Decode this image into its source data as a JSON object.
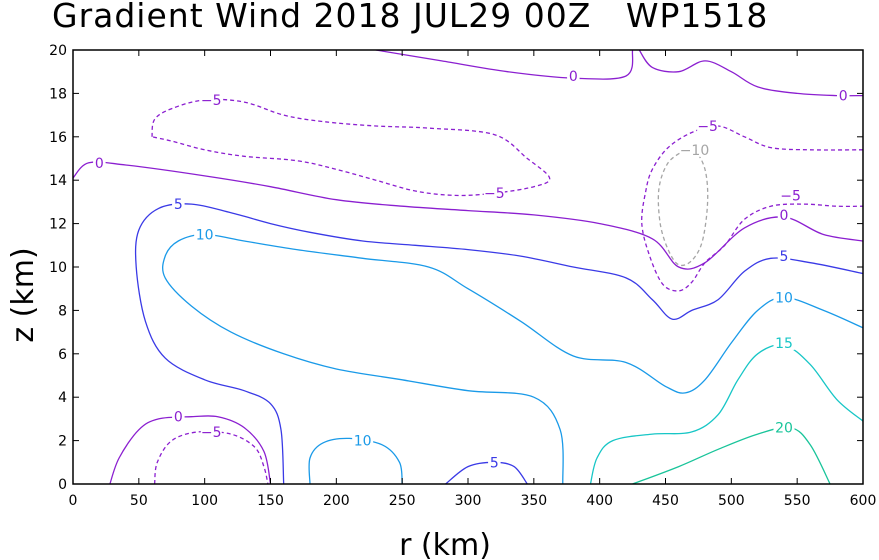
{
  "chart_data": {
    "type": "contour",
    "title": "Gradient Wind 2018 JUL29 00Z   WP1518",
    "xlabel": "r (km)",
    "ylabel": "z (km)",
    "xlim": [
      0,
      600
    ],
    "ylim": [
      0,
      20
    ],
    "xticks": [
      0,
      50,
      100,
      150,
      200,
      250,
      300,
      350,
      400,
      450,
      500,
      550,
      600
    ],
    "yticks": [
      0,
      2,
      4,
      6,
      8,
      10,
      12,
      14,
      16,
      18,
      20
    ],
    "contours": [
      {
        "level": "0",
        "color": "#8b1fd0",
        "dashed": false,
        "points": [
          [
            0,
            14.1
          ],
          [
            12,
            14.8
          ],
          [
            40,
            14.7
          ],
          [
            100,
            14.2
          ],
          [
            150,
            13.7
          ],
          [
            200,
            13.1
          ],
          [
            250,
            12.8
          ],
          [
            300,
            12.6
          ],
          [
            350,
            12.4
          ],
          [
            400,
            12.0
          ],
          [
            440,
            11.3
          ],
          [
            460,
            10.0
          ],
          [
            480,
            10.2
          ],
          [
            510,
            11.8
          ],
          [
            540,
            12.3
          ],
          [
            570,
            11.5
          ],
          [
            600,
            11.2
          ]
        ],
        "labels": [
          {
            "text": "0",
            "x": 20,
            "y": 14.8
          },
          {
            "text": "0",
            "x": 540,
            "y": 12.4
          }
        ]
      },
      {
        "level": "0",
        "color": "#8b1fd0",
        "dashed": false,
        "points": [
          [
            230,
            20
          ],
          [
            280,
            19.5
          ],
          [
            330,
            19.0
          ],
          [
            380,
            18.7
          ],
          [
            420,
            18.8
          ],
          [
            425,
            20
          ]
        ],
        "labels": [
          {
            "text": "0",
            "x": 380,
            "y": 18.8
          }
        ]
      },
      {
        "level": "0",
        "color": "#8b1fd0",
        "dashed": false,
        "points": [
          [
            430,
            20
          ],
          [
            440,
            19.2
          ],
          [
            460,
            19.0
          ],
          [
            480,
            19.5
          ],
          [
            500,
            19.0
          ],
          [
            520,
            18.3
          ],
          [
            550,
            18.0
          ],
          [
            580,
            17.9
          ],
          [
            600,
            17.9
          ]
        ],
        "labels": [
          {
            "text": "0",
            "x": 585,
            "y": 17.9
          }
        ]
      },
      {
        "level": "0",
        "color": "#8b1fd0",
        "dashed": false,
        "points": [
          [
            28,
            0
          ],
          [
            35,
            1.2
          ],
          [
            50,
            2.5
          ],
          [
            65,
            3.0
          ],
          [
            90,
            3.1
          ],
          [
            110,
            3.1
          ],
          [
            130,
            2.6
          ],
          [
            145,
            1.5
          ],
          [
            150,
            0
          ]
        ],
        "labels": [
          {
            "text": "0",
            "x": 80,
            "y": 3.1
          }
        ]
      },
      {
        "level": "-5",
        "color": "#8b1fd0",
        "dashed": true,
        "points": [
          [
            62,
            0
          ],
          [
            64,
            1.0
          ],
          [
            75,
            2.0
          ],
          [
            95,
            2.4
          ],
          [
            120,
            2.3
          ],
          [
            138,
            1.7
          ],
          [
            145,
            0.8
          ],
          [
            148,
            0
          ]
        ],
        "labels": [
          {
            "text": "-5",
            "x": 105,
            "y": 2.4
          }
        ]
      },
      {
        "level": "-5",
        "color": "#8b1fd0",
        "dashed": true,
        "points": [
          [
            60,
            16.0
          ],
          [
            62,
            16.8
          ],
          [
            75,
            17.3
          ],
          [
            100,
            17.7
          ],
          [
            130,
            17.6
          ],
          [
            160,
            17.0
          ],
          [
            190,
            16.7
          ],
          [
            230,
            16.5
          ],
          [
            270,
            16.4
          ],
          [
            320,
            16.1
          ],
          [
            345,
            15.0
          ],
          [
            362,
            14.1
          ],
          [
            350,
            13.7
          ],
          [
            320,
            13.4
          ],
          [
            290,
            13.3
          ],
          [
            260,
            13.5
          ],
          [
            230,
            14.0
          ],
          [
            200,
            14.5
          ],
          [
            170,
            14.9
          ],
          [
            130,
            15.1
          ],
          [
            100,
            15.4
          ],
          [
            75,
            15.8
          ],
          [
            60,
            16.0
          ]
        ],
        "labels": [
          {
            "text": "-5",
            "x": 105,
            "y": 17.7
          },
          {
            "text": "-5",
            "x": 320,
            "y": 13.4
          }
        ]
      },
      {
        "level": "-5",
        "color": "#8b1fd0",
        "dashed": true,
        "points": [
          [
            600,
            15.4
          ],
          [
            560,
            15.4
          ],
          [
            530,
            15.5
          ],
          [
            510,
            16.0
          ],
          [
            490,
            16.5
          ],
          [
            470,
            16.2
          ],
          [
            452,
            15.5
          ],
          [
            440,
            14.5
          ],
          [
            435,
            13.5
          ],
          [
            432,
            12.0
          ],
          [
            438,
            10.5
          ],
          [
            448,
            9.2
          ],
          [
            460,
            8.9
          ],
          [
            470,
            9.3
          ],
          [
            480,
            10.2
          ],
          [
            495,
            11.0
          ],
          [
            510,
            12.2
          ],
          [
            530,
            12.8
          ],
          [
            555,
            12.9
          ],
          [
            580,
            12.8
          ],
          [
            600,
            12.8
          ]
        ],
        "labels": [
          {
            "text": "-5",
            "x": 482,
            "y": 16.5
          },
          {
            "text": "-5",
            "x": 545,
            "y": 13.3
          }
        ]
      },
      {
        "level": "-10",
        "color": "#a5a5a5",
        "dashed": true,
        "points": [
          [
            465,
            15.4
          ],
          [
            452,
            14.8
          ],
          [
            445,
            13.6
          ],
          [
            446,
            12.0
          ],
          [
            452,
            10.8
          ],
          [
            460,
            10.1
          ],
          [
            470,
            10.3
          ],
          [
            478,
            11.2
          ],
          [
            482,
            13.0
          ],
          [
            480,
            14.5
          ],
          [
            472,
            15.4
          ],
          [
            465,
            15.4
          ]
        ],
        "labels": [
          {
            "text": "-10",
            "x": 472,
            "y": 15.4
          }
        ]
      },
      {
        "level": "5",
        "color": "#3a3ae6",
        "dashed": false,
        "points": [
          [
            160,
            0
          ],
          [
            158,
            2.5
          ],
          [
            150,
            3.7
          ],
          [
            130,
            4.3
          ],
          [
            100,
            4.8
          ],
          [
            70,
            5.8
          ],
          [
            55,
            7.5
          ],
          [
            48,
            10.0
          ],
          [
            50,
            11.7
          ],
          [
            65,
            12.7
          ],
          [
            90,
            12.9
          ],
          [
            120,
            12.5
          ],
          [
            150,
            12.0
          ],
          [
            180,
            11.6
          ],
          [
            220,
            11.2
          ],
          [
            260,
            11.0
          ],
          [
            300,
            10.8
          ],
          [
            340,
            10.5
          ],
          [
            380,
            10.0
          ],
          [
            420,
            9.5
          ],
          [
            440,
            8.5
          ],
          [
            455,
            7.6
          ],
          [
            470,
            8.0
          ],
          [
            490,
            8.5
          ],
          [
            510,
            9.8
          ],
          [
            530,
            10.4
          ],
          [
            560,
            10.2
          ],
          [
            600,
            9.7
          ]
        ],
        "labels": [
          {
            "text": "5",
            "x": 80,
            "y": 12.9
          },
          {
            "text": "5",
            "x": 540,
            "y": 10.5
          }
        ]
      },
      {
        "level": "5",
        "color": "#3a3ae6",
        "dashed": false,
        "points": [
          [
            283,
            0
          ],
          [
            300,
            0.8
          ],
          [
            320,
            1.0
          ],
          [
            335,
            0.8
          ],
          [
            345,
            0
          ]
        ],
        "labels": [
          {
            "text": "5",
            "x": 320,
            "y": 1.0
          }
        ]
      },
      {
        "level": "10",
        "color": "#1a9ae8",
        "dashed": false,
        "points": [
          [
            250,
            0
          ],
          [
            248,
            1.0
          ],
          [
            235,
            1.8
          ],
          [
            210,
            2.1
          ],
          [
            190,
            1.9
          ],
          [
            180,
            1.2
          ],
          [
            180,
            0
          ]
        ],
        "labels": [
          {
            "text": "10",
            "x": 220,
            "y": 2.0
          }
        ]
      },
      {
        "level": "10",
        "color": "#1a9ae8",
        "dashed": false,
        "points": [
          [
            372,
            0
          ],
          [
            370,
            2.5
          ],
          [
            350,
            4.0
          ],
          [
            300,
            4.3
          ],
          [
            250,
            4.8
          ],
          [
            200,
            5.3
          ],
          [
            160,
            6.0
          ],
          [
            120,
            7.0
          ],
          [
            90,
            8.2
          ],
          [
            70,
            9.5
          ],
          [
            70,
            10.5
          ],
          [
            80,
            11.2
          ],
          [
            100,
            11.5
          ],
          [
            130,
            11.2
          ],
          [
            170,
            10.8
          ],
          [
            220,
            10.4
          ],
          [
            270,
            10.0
          ],
          [
            300,
            9.0
          ],
          [
            340,
            7.5
          ],
          [
            380,
            5.9
          ],
          [
            420,
            5.6
          ],
          [
            450,
            4.5
          ],
          [
            465,
            4.2
          ],
          [
            480,
            4.8
          ],
          [
            500,
            6.5
          ],
          [
            520,
            8.0
          ],
          [
            540,
            8.6
          ],
          [
            570,
            8.0
          ],
          [
            600,
            7.2
          ]
        ],
        "labels": [
          {
            "text": "10",
            "x": 100,
            "y": 11.5
          },
          {
            "text": "10",
            "x": 540,
            "y": 8.6
          }
        ]
      },
      {
        "level": "15",
        "color": "#17c6c6",
        "dashed": false,
        "points": [
          [
            393,
            0
          ],
          [
            398,
            1.2
          ],
          [
            410,
            2.0
          ],
          [
            440,
            2.3
          ],
          [
            470,
            2.4
          ],
          [
            490,
            3.2
          ],
          [
            505,
            4.8
          ],
          [
            520,
            6.0
          ],
          [
            540,
            6.4
          ],
          [
            560,
            5.5
          ],
          [
            580,
            3.9
          ],
          [
            600,
            2.9
          ]
        ],
        "labels": [
          {
            "text": "15",
            "x": 540,
            "y": 6.5
          }
        ]
      },
      {
        "level": "20",
        "color": "#19c49a",
        "dashed": false,
        "points": [
          [
            425,
            0
          ],
          [
            460,
            0.8
          ],
          [
            490,
            1.6
          ],
          [
            520,
            2.3
          ],
          [
            545,
            2.6
          ],
          [
            560,
            1.8
          ],
          [
            575,
            0
          ]
        ],
        "labels": [
          {
            "text": "20",
            "x": 540,
            "y": 2.6
          }
        ]
      }
    ]
  }
}
